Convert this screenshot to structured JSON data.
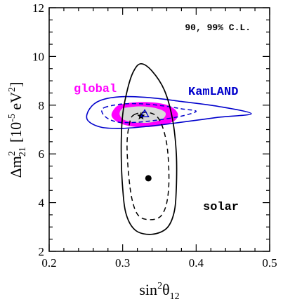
{
  "chart_data": {
    "type": "contour",
    "xlim": [
      0.2,
      0.5
    ],
    "ylim": [
      2,
      12
    ],
    "x_ticks": [
      "0.2",
      "0.3",
      "0.4",
      "0.5"
    ],
    "y_ticks": [
      "2",
      "4",
      "6",
      "8",
      "10",
      "12"
    ],
    "xlabel": "sin²θ₁₂",
    "ylabel": "Δm²₂₁ [10⁻⁵ eV²]",
    "confidence_note": "90, 99% C.L.",
    "labels": {
      "global": "global",
      "kamland": "KamLAND",
      "solar": "solar"
    },
    "colors": {
      "global": "#ff00ff",
      "kamland": "#0000cc",
      "solar": "#000000",
      "global_core": "#d9d9d9"
    },
    "best_fit": {
      "solar": {
        "x": 0.335,
        "y": 5.0
      },
      "global": {
        "x": 0.325,
        "y": 7.55
      },
      "kamland": {
        "x": 0.33,
        "y": 7.65
      }
    },
    "regions": {
      "solar_99": [
        [
          0.325,
          9.7
        ],
        [
          0.34,
          9.4
        ],
        [
          0.357,
          8.6
        ],
        [
          0.368,
          7.4
        ],
        [
          0.373,
          6.0
        ],
        [
          0.373,
          4.6
        ],
        [
          0.37,
          3.6
        ],
        [
          0.36,
          2.95
        ],
        [
          0.34,
          2.7
        ],
        [
          0.318,
          2.85
        ],
        [
          0.305,
          3.5
        ],
        [
          0.3,
          4.6
        ],
        [
          0.298,
          6.2
        ],
        [
          0.3,
          7.6
        ],
        [
          0.307,
          8.7
        ],
        [
          0.315,
          9.4
        ],
        [
          0.325,
          9.7
        ]
      ],
      "solar_90": [
        [
          0.315,
          7.6
        ],
        [
          0.335,
          7.7
        ],
        [
          0.35,
          7.4
        ],
        [
          0.36,
          6.4
        ],
        [
          0.363,
          5.0
        ],
        [
          0.36,
          4.0
        ],
        [
          0.352,
          3.45
        ],
        [
          0.338,
          3.3
        ],
        [
          0.322,
          3.45
        ],
        [
          0.313,
          4.1
        ],
        [
          0.308,
          5.2
        ],
        [
          0.306,
          6.4
        ],
        [
          0.309,
          7.2
        ],
        [
          0.315,
          7.6
        ]
      ],
      "kamland_99": [
        [
          0.255,
          7.85
        ],
        [
          0.27,
          8.2
        ],
        [
          0.3,
          8.35
        ],
        [
          0.34,
          8.3
        ],
        [
          0.38,
          8.15
        ],
        [
          0.43,
          7.95
        ],
        [
          0.475,
          7.65
        ],
        [
          0.43,
          7.5
        ],
        [
          0.38,
          7.3
        ],
        [
          0.34,
          7.15
        ],
        [
          0.3,
          7.05
        ],
        [
          0.27,
          7.1
        ],
        [
          0.252,
          7.4
        ],
        [
          0.255,
          7.85
        ]
      ],
      "kamland_90": [
        [
          0.275,
          7.9
        ],
        [
          0.3,
          8.05
        ],
        [
          0.33,
          8.05
        ],
        [
          0.36,
          7.95
        ],
        [
          0.38,
          7.85
        ],
        [
          0.4,
          7.75
        ],
        [
          0.38,
          7.55
        ],
        [
          0.35,
          7.4
        ],
        [
          0.32,
          7.3
        ],
        [
          0.295,
          7.3
        ],
        [
          0.28,
          7.45
        ],
        [
          0.272,
          7.7
        ],
        [
          0.275,
          7.9
        ]
      ],
      "global_99": [
        [
          0.3,
          8.05
        ],
        [
          0.32,
          8.12
        ],
        [
          0.345,
          8.1
        ],
        [
          0.365,
          7.95
        ],
        [
          0.375,
          7.65
        ],
        [
          0.37,
          7.35
        ],
        [
          0.35,
          7.15
        ],
        [
          0.32,
          7.1
        ],
        [
          0.297,
          7.25
        ],
        [
          0.285,
          7.55
        ],
        [
          0.29,
          7.9
        ],
        [
          0.3,
          8.05
        ]
      ],
      "global_90": [
        [
          0.305,
          7.9
        ],
        [
          0.325,
          7.95
        ],
        [
          0.345,
          7.88
        ],
        [
          0.358,
          7.7
        ],
        [
          0.355,
          7.45
        ],
        [
          0.34,
          7.3
        ],
        [
          0.32,
          7.28
        ],
        [
          0.303,
          7.38
        ],
        [
          0.296,
          7.6
        ],
        [
          0.298,
          7.82
        ],
        [
          0.305,
          7.9
        ]
      ]
    }
  }
}
